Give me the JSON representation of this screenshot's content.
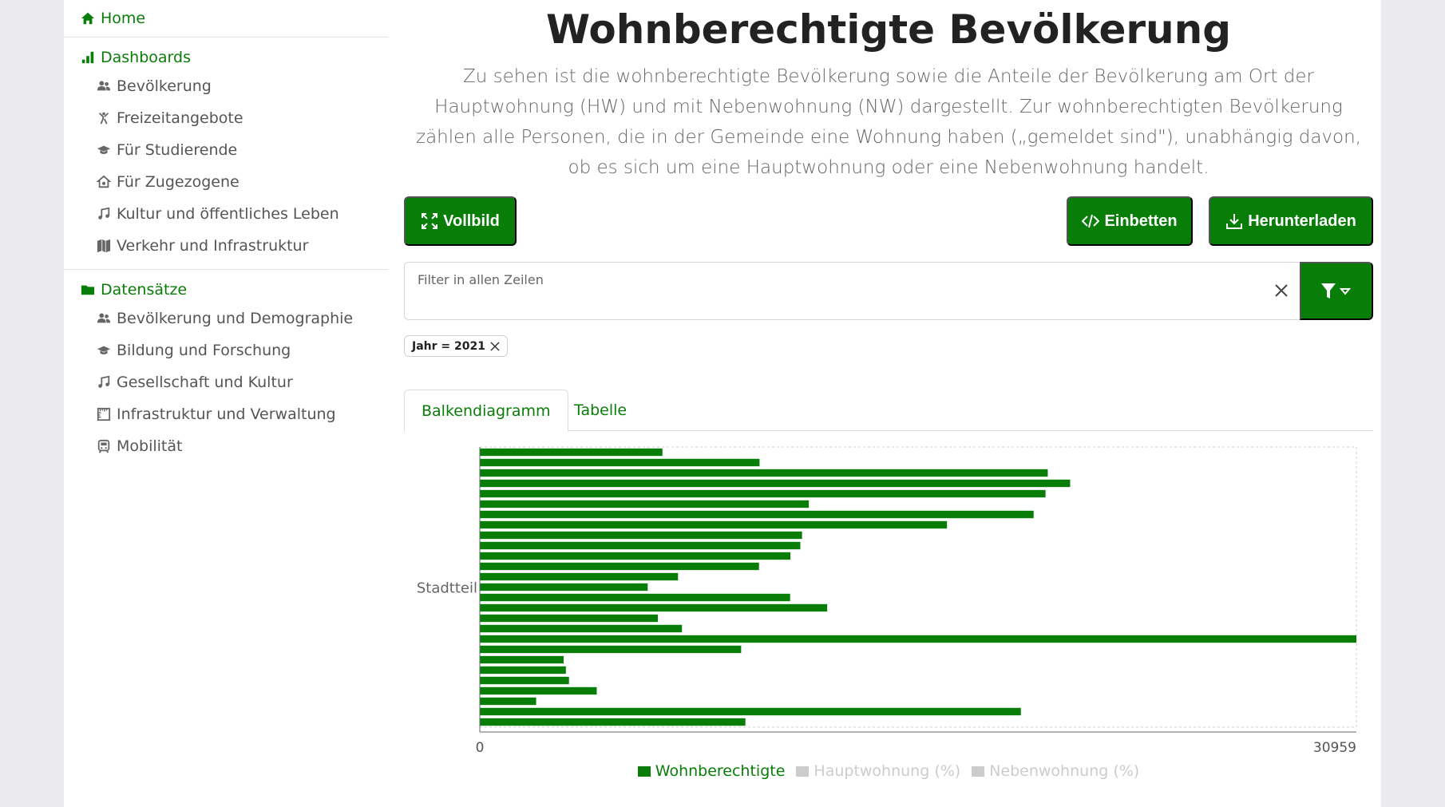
{
  "sidebar": {
    "home": "Home",
    "dashboards": {
      "label": "Dashboards",
      "items": [
        "Bevölkerung",
        "Freizeitangebote",
        "Für Studierende",
        "Für Zugezogene",
        "Kultur und öffentliches Leben",
        "Verkehr und Infrastruktur"
      ]
    },
    "datasets": {
      "label": "Datensätze",
      "items": [
        "Bevölkerung und Demographie",
        "Bildung und Forschung",
        "Gesellschaft und Kultur",
        "Infrastruktur und Verwaltung",
        "Mobilität"
      ]
    }
  },
  "main": {
    "title": "Wohnberechtigte Bevölkerung",
    "description": "Zu sehen ist die wohnberechtigte Bevölkerung sowie die Anteile der Bevölkerung am Ort der Hauptwohnung (HW) und mit Nebenwohnung (NW) dargestellt. Zur wohnberechtigten Bevölkerung zählen alle Personen, die in der Gemeinde eine Wohnung haben („gemeldet sind\"), unabhängig davon, ob es sich um eine Hauptwohnung oder eine Nebenwohnung handelt.",
    "buttons": {
      "fullscreen": "Vollbild",
      "embed": "Einbetten",
      "download": "Herunterladen"
    },
    "filter": {
      "placeholder": "Filter in allen Zeilen"
    },
    "chip": "Jahr = 2021",
    "tabs": [
      "Balkendiagramm",
      "Tabelle"
    ]
  },
  "colors": {
    "accent": "#087d08",
    "inactive": "#cccccc"
  },
  "chart_data": {
    "type": "bar",
    "orientation": "horizontal",
    "ylabel": "Stadtteil",
    "xlim": [
      0,
      30959
    ],
    "x_ticks": [
      "0",
      "30959"
    ],
    "grid": false,
    "legend_position": "bottom",
    "series": [
      {
        "name": "Wohnberechtigte",
        "active": true,
        "values": [
          6450,
          9880,
          20060,
          20850,
          19980,
          11620,
          19560,
          16500,
          11380,
          11320,
          10970,
          9860,
          7000,
          5930,
          10960,
          12270,
          6290,
          7140,
          30959,
          9230,
          2960,
          3040,
          3150,
          4130,
          1990,
          19110,
          9380
        ]
      },
      {
        "name": "Hauptwohnung (%)",
        "active": false,
        "values": []
      },
      {
        "name": "Nebenwohnung (%)",
        "active": false,
        "values": []
      }
    ]
  }
}
